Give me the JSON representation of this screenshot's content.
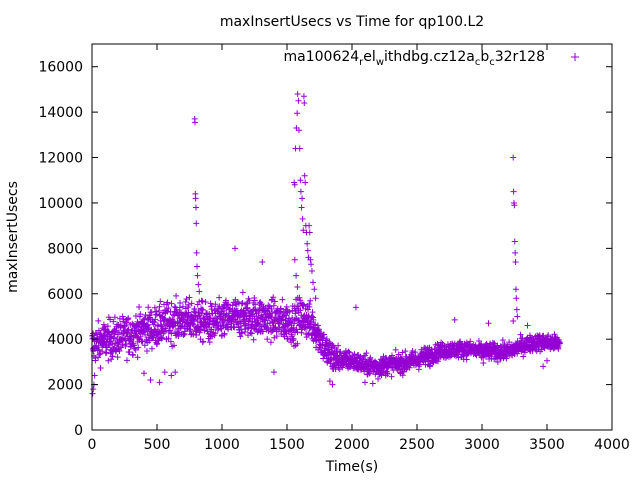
{
  "chart_data": {
    "type": "scatter",
    "title": "maxInsertUsecs vs Time for qp100.L2",
    "xlabel": "Time(s)",
    "ylabel": "maxInsertUsecs",
    "xlim": [
      0,
      4000
    ],
    "ylim": [
      0,
      17000
    ],
    "xticks": [
      0,
      500,
      1000,
      1500,
      2000,
      2500,
      3000,
      3500,
      4000
    ],
    "yticks": [
      0,
      2000,
      4000,
      6000,
      8000,
      10000,
      12000,
      14000,
      16000
    ],
    "grid": false,
    "legend_position": "top-right",
    "marker": "+",
    "colors": {
      "series": "#9400d3",
      "axis": "#000000",
      "background": "#ffffff"
    },
    "legend": {
      "segments": [
        {
          "text": "ma100624",
          "sub": false
        },
        {
          "text": "r",
          "sub": true
        },
        {
          "text": "el",
          "sub": false
        },
        {
          "text": "w",
          "sub": true
        },
        {
          "text": "ithdbg.cz12a",
          "sub": false
        },
        {
          "text": "c",
          "sub": true
        },
        {
          "text": "b",
          "sub": false
        },
        {
          "text": "c",
          "sub": true
        },
        {
          "text": "32r128",
          "sub": false
        }
      ]
    },
    "series": [
      {
        "name": "ma100624_rel_withdbg.cz12a_c_b_c_32r128",
        "trend": [
          [
            0,
            3700
          ],
          [
            100,
            3950
          ],
          [
            200,
            4050
          ],
          [
            300,
            4200
          ],
          [
            400,
            4450
          ],
          [
            500,
            4550
          ],
          [
            600,
            4750
          ],
          [
            700,
            4850
          ],
          [
            800,
            4850
          ],
          [
            900,
            4650
          ],
          [
            1000,
            4800
          ],
          [
            1100,
            4950
          ],
          [
            1200,
            5000
          ],
          [
            1300,
            4950
          ],
          [
            1400,
            4850
          ],
          [
            1500,
            4750
          ],
          [
            1550,
            4700
          ],
          [
            1600,
            5000
          ],
          [
            1650,
            4900
          ],
          [
            1700,
            4600
          ],
          [
            1750,
            4100
          ],
          [
            1800,
            3500
          ],
          [
            1850,
            3200
          ],
          [
            1900,
            3100
          ],
          [
            2000,
            3050
          ],
          [
            2100,
            2850
          ],
          [
            2200,
            2800
          ],
          [
            2300,
            2900
          ],
          [
            2400,
            2950
          ],
          [
            2500,
            3100
          ],
          [
            2600,
            3300
          ],
          [
            2700,
            3500
          ],
          [
            2800,
            3550
          ],
          [
            2900,
            3550
          ],
          [
            3000,
            3450
          ],
          [
            3100,
            3450
          ],
          [
            3200,
            3450
          ],
          [
            3300,
            3700
          ],
          [
            3400,
            3850
          ],
          [
            3500,
            3850
          ],
          [
            3600,
            3800
          ]
        ],
        "spikes": [
          [
            790,
            13700
          ],
          [
            792,
            13550
          ],
          [
            795,
            10400
          ],
          [
            797,
            10200
          ],
          [
            800,
            9800
          ],
          [
            802,
            9100
          ],
          [
            805,
            7800
          ],
          [
            808,
            7200
          ],
          [
            812,
            6800
          ],
          [
            818,
            6400
          ],
          [
            825,
            6100
          ],
          [
            1100,
            8000
          ],
          [
            1310,
            7400
          ],
          [
            1555,
            10900
          ],
          [
            1560,
            10800
          ],
          [
            1565,
            12400
          ],
          [
            1572,
            13300
          ],
          [
            1578,
            13950
          ],
          [
            1582,
            14800
          ],
          [
            1588,
            14500
          ],
          [
            1592,
            13200
          ],
          [
            1598,
            12400
          ],
          [
            1603,
            11000
          ],
          [
            1607,
            10500
          ],
          [
            1612,
            9800
          ],
          [
            1616,
            10200
          ],
          [
            1620,
            9300
          ],
          [
            1625,
            8800
          ],
          [
            1630,
            14700
          ],
          [
            1633,
            14400
          ],
          [
            1636,
            11200
          ],
          [
            1640,
            10900
          ],
          [
            1645,
            9000
          ],
          [
            1650,
            8700
          ],
          [
            1655,
            8200
          ],
          [
            1660,
            7900
          ],
          [
            1665,
            7600
          ],
          [
            1670,
            9000
          ],
          [
            1675,
            8700
          ],
          [
            1680,
            7500
          ],
          [
            1685,
            7300
          ],
          [
            1692,
            7000
          ],
          [
            1700,
            6500
          ],
          [
            1710,
            6200
          ],
          [
            1720,
            5800
          ],
          [
            1560,
            7500
          ],
          [
            1570,
            6800
          ],
          [
            1580,
            6300
          ],
          [
            3240,
            12000
          ],
          [
            3243,
            10500
          ],
          [
            3246,
            10000
          ],
          [
            3249,
            9900
          ],
          [
            3252,
            8300
          ],
          [
            3255,
            7800
          ],
          [
            3258,
            7400
          ],
          [
            3261,
            6200
          ],
          [
            3264,
            5800
          ],
          [
            3268,
            5300
          ],
          [
            3272,
            5000
          ],
          [
            2030,
            5400
          ],
          [
            3240,
            4800
          ],
          [
            3350,
            4600
          ],
          [
            3050,
            4700
          ],
          [
            2790,
            4850
          ]
        ],
        "lows": [
          [
            5,
            1600
          ],
          [
            10,
            1800
          ],
          [
            15,
            2000
          ],
          [
            20,
            2400
          ],
          [
            400,
            2500
          ],
          [
            450,
            2200
          ],
          [
            520,
            2100
          ],
          [
            560,
            2550
          ],
          [
            610,
            2400
          ],
          [
            640,
            2550
          ],
          [
            1400,
            2550
          ],
          [
            1830,
            2150
          ],
          [
            1850,
            2000
          ],
          [
            2100,
            2100
          ],
          [
            2160,
            2050
          ],
          [
            2200,
            2250
          ],
          [
            2600,
            2800
          ],
          [
            3010,
            2950
          ],
          [
            3470,
            2800
          ],
          [
            3500,
            3050
          ]
        ]
      }
    ]
  }
}
